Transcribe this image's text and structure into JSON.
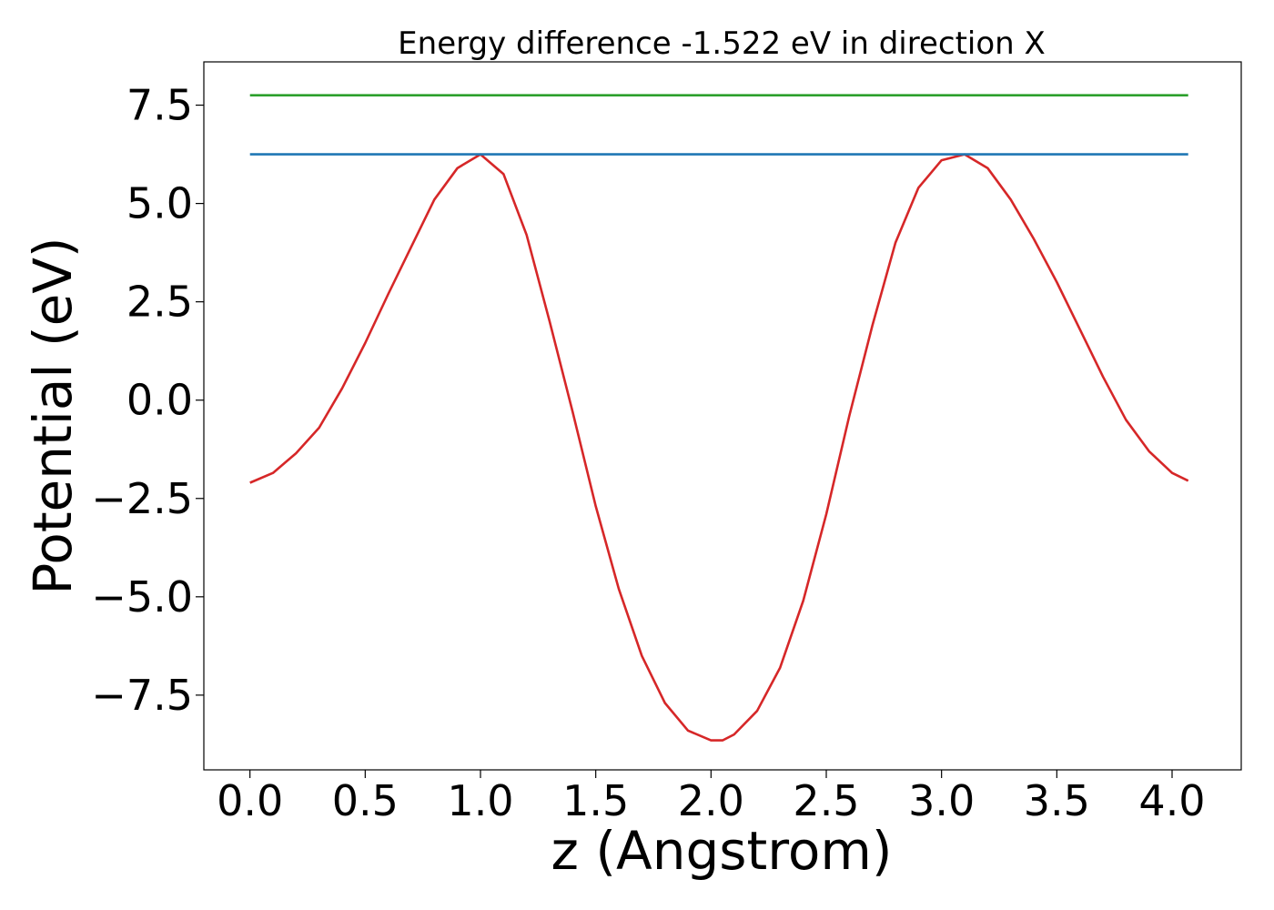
{
  "chart_data": {
    "type": "line",
    "title": "Energy difference -1.522 eV in direction X",
    "xlabel": "z (Angstrom)",
    "ylabel": "Potential (eV)",
    "xlim": [
      -0.2,
      4.3
    ],
    "ylim": [
      -9.4,
      8.6
    ],
    "xticks": [
      0.0,
      0.5,
      1.0,
      1.5,
      2.0,
      2.5,
      3.0,
      3.5,
      4.0
    ],
    "xtick_labels": [
      "0.0",
      "0.5",
      "1.0",
      "1.5",
      "2.0",
      "2.5",
      "3.0",
      "3.5",
      "4.0"
    ],
    "yticks": [
      7.5,
      5.0,
      2.5,
      0.0,
      -2.5,
      -5.0,
      -7.5
    ],
    "ytick_labels": [
      "7.5",
      "5.0",
      "2.5",
      "0.0",
      "−2.5",
      "−5.0",
      "−7.5"
    ],
    "grid": false,
    "series": [
      {
        "color": "#d62728",
        "x": [
          0.0,
          0.1,
          0.2,
          0.3,
          0.4,
          0.5,
          0.6,
          0.7,
          0.8,
          0.9,
          1.0,
          1.1,
          1.2,
          1.3,
          1.4,
          1.5,
          1.6,
          1.7,
          1.8,
          1.9,
          2.0,
          2.05,
          2.1,
          2.2,
          2.3,
          2.4,
          2.5,
          2.6,
          2.7,
          2.8,
          2.9,
          3.0,
          3.1,
          3.2,
          3.3,
          3.4,
          3.5,
          3.6,
          3.7,
          3.8,
          3.9,
          4.0,
          4.07
        ],
        "y": [
          -2.1,
          -1.85,
          -1.35,
          -0.7,
          0.3,
          1.45,
          2.7,
          3.9,
          5.1,
          5.9,
          6.25,
          5.75,
          4.2,
          2.0,
          -0.3,
          -2.7,
          -4.8,
          -6.5,
          -7.7,
          -8.4,
          -8.65,
          -8.65,
          -8.5,
          -7.9,
          -6.8,
          -5.1,
          -2.9,
          -0.4,
          1.9,
          4.0,
          5.4,
          6.1,
          6.25,
          5.9,
          5.1,
          4.1,
          3.0,
          1.8,
          0.6,
          -0.5,
          -1.3,
          -1.85,
          -2.05
        ]
      },
      {
        "color": "#1f77b4",
        "x": [
          0.0,
          4.07
        ],
        "y": [
          6.25,
          6.25
        ]
      },
      {
        "color": "#2ca02c",
        "x": [
          0.0,
          4.07
        ],
        "y": [
          7.75,
          7.75
        ]
      }
    ]
  }
}
